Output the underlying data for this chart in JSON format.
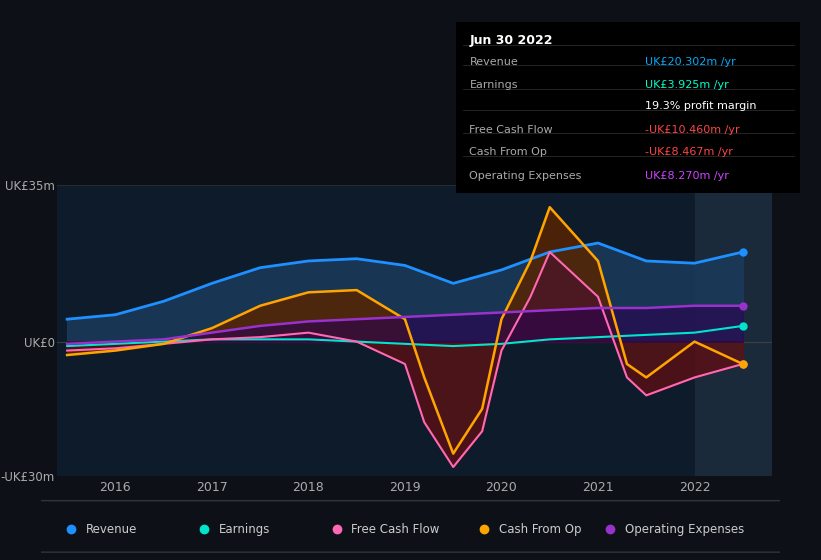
{
  "bg_color": "#0d1117",
  "plot_bg_color": "#0d1b2a",
  "highlight_bg_color": "#1a2a3a",
  "title_box": {
    "date": "Jun 30 2022",
    "rows": [
      {
        "label": "Revenue",
        "value": "UK£20.302m /yr",
        "value_color": "#00aaff"
      },
      {
        "label": "Earnings",
        "value": "UK£3.925m /yr",
        "value_color": "#00ffcc"
      },
      {
        "label": "",
        "value": "19.3% profit margin",
        "value_color": "#ffffff"
      },
      {
        "label": "Free Cash Flow",
        "value": "-UK£10.460m /yr",
        "value_color": "#ff4444"
      },
      {
        "label": "Cash From Op",
        "value": "-UK£8.467m /yr",
        "value_color": "#ff4444"
      },
      {
        "label": "Operating Expenses",
        "value": "UK£8.270m /yr",
        "value_color": "#cc44ff"
      }
    ]
  },
  "ylim": [
    -30,
    35
  ],
  "yticks": [
    -30,
    0,
    35
  ],
  "ytick_labels": [
    "-UK£30m",
    "UK£0",
    "UK£35m"
  ],
  "ylabel_color": "#aaaaaa",
  "xticks": [
    2016,
    2017,
    2018,
    2019,
    2020,
    2021,
    2022
  ],
  "highlight_x_start": 2022.0,
  "series": {
    "revenue": {
      "color": "#1e90ff",
      "fill_color": "#1a3a5c",
      "label": "Revenue",
      "x": [
        2015.5,
        2016.0,
        2016.5,
        2017.0,
        2017.5,
        2018.0,
        2018.5,
        2019.0,
        2019.5,
        2020.0,
        2020.5,
        2021.0,
        2021.5,
        2022.0,
        2022.5
      ],
      "y": [
        5.0,
        6.0,
        9.0,
        13.0,
        16.5,
        18.0,
        18.5,
        17.0,
        13.0,
        16.0,
        20.0,
        22.0,
        18.0,
        17.5,
        20.0
      ]
    },
    "earnings": {
      "color": "#00e5cc",
      "fill_color": "#003030",
      "label": "Earnings",
      "x": [
        2015.5,
        2016.0,
        2016.5,
        2017.0,
        2017.5,
        2018.0,
        2018.5,
        2019.0,
        2019.5,
        2020.0,
        2020.5,
        2021.0,
        2021.5,
        2022.0,
        2022.5
      ],
      "y": [
        -1.0,
        -0.5,
        0.0,
        0.5,
        0.5,
        0.5,
        0.0,
        -0.5,
        -1.0,
        -0.5,
        0.5,
        1.0,
        1.5,
        2.0,
        3.5
      ]
    },
    "free_cash_flow": {
      "color": "#ff69b4",
      "fill_color": "#5a0a20",
      "label": "Free Cash Flow",
      "x": [
        2015.5,
        2016.0,
        2016.5,
        2017.0,
        2017.5,
        2018.0,
        2018.5,
        2019.0,
        2019.2,
        2019.5,
        2019.8,
        2020.0,
        2020.3,
        2020.5,
        2021.0,
        2021.3,
        2021.5,
        2022.0,
        2022.5
      ],
      "y": [
        -2.0,
        -1.5,
        -0.5,
        0.5,
        1.0,
        2.0,
        0.0,
        -5.0,
        -18.0,
        -28.0,
        -20.0,
        -2.0,
        10.0,
        20.0,
        10.0,
        -8.0,
        -12.0,
        -8.0,
        -5.0
      ]
    },
    "cash_from_op": {
      "color": "#ffa500",
      "fill_color": "#5a3000",
      "label": "Cash From Op",
      "x": [
        2015.5,
        2016.0,
        2016.5,
        2017.0,
        2017.5,
        2018.0,
        2018.5,
        2019.0,
        2019.2,
        2019.5,
        2019.8,
        2020.0,
        2020.3,
        2020.5,
        2021.0,
        2021.3,
        2021.5,
        2022.0,
        2022.5
      ],
      "y": [
        -3.0,
        -2.0,
        -0.5,
        3.0,
        8.0,
        11.0,
        11.5,
        5.0,
        -8.0,
        -25.0,
        -15.0,
        5.0,
        18.0,
        30.0,
        18.0,
        -5.0,
        -8.0,
        0.0,
        -5.0
      ]
    },
    "operating_expenses": {
      "color": "#9932cc",
      "fill_color": "#2a0050",
      "label": "Operating Expenses",
      "x": [
        2015.5,
        2016.0,
        2016.5,
        2017.0,
        2017.5,
        2018.0,
        2018.5,
        2019.0,
        2019.5,
        2020.0,
        2020.5,
        2021.0,
        2021.5,
        2022.0,
        2022.5
      ],
      "y": [
        -0.5,
        0.0,
        0.5,
        2.0,
        3.5,
        4.5,
        5.0,
        5.5,
        6.0,
        6.5,
        7.0,
        7.5,
        7.5,
        8.0,
        8.0
      ]
    }
  }
}
